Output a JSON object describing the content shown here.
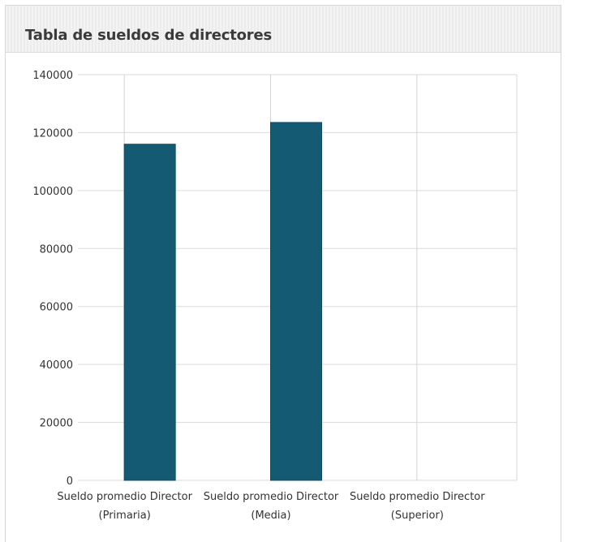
{
  "panel": {
    "title": "Tabla de sueldos de directores"
  },
  "chart_data": {
    "type": "bar",
    "title": "Tabla de sueldos de directores",
    "categories": [
      [
        "Sueldo promedio Director",
        "(Primaria)"
      ],
      [
        "Sueldo promedio Director",
        "(Media)"
      ],
      [
        "Sueldo promedio Director",
        "(Superior)"
      ]
    ],
    "values": [
      116000,
      123500,
      0
    ],
    "ylim": [
      0,
      140000
    ],
    "yticks": [
      "0",
      "20000",
      "40000",
      "60000",
      "80000",
      "100000",
      "120000",
      "140000"
    ],
    "grid": true,
    "bar_color": "#135a72"
  }
}
